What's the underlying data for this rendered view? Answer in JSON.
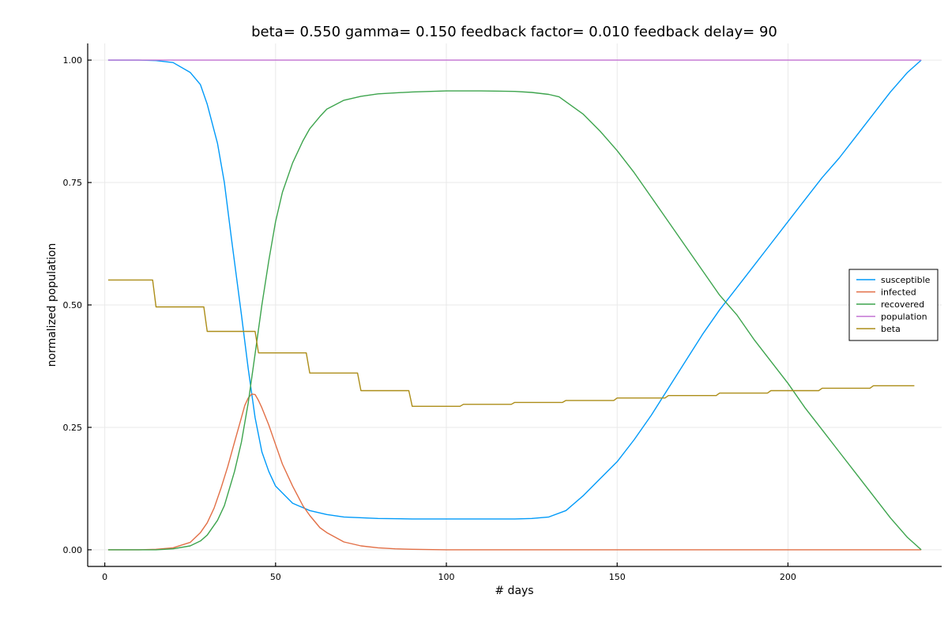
{
  "chart_data": {
    "type": "line",
    "title": "beta= 0.550 gamma= 0.150 feedback factor= 0.010 feedback delay= 90",
    "xlabel": "# days",
    "ylabel": "normalized population",
    "xlim": [
      -5,
      245
    ],
    "ylim": [
      -0.034,
      1.034
    ],
    "xticks": [
      0,
      50,
      100,
      150,
      200
    ],
    "xtick_labels": [
      "0",
      "50",
      "100",
      "150",
      "200"
    ],
    "yticks": [
      0,
      0.25,
      0.5,
      0.75,
      1.0
    ],
    "ytick_labels": [
      "0.00",
      "0.25",
      "0.50",
      "0.75",
      "1.00"
    ],
    "grid": true,
    "legend_position": "right",
    "series": [
      {
        "name": "susceptible",
        "color": "#009af9",
        "x": [
          1,
          10,
          15,
          20,
          25,
          28,
          30,
          33,
          35,
          37,
          40,
          42,
          44,
          46,
          48,
          50,
          55,
          60,
          65,
          70,
          80,
          90,
          100,
          110,
          120,
          125,
          130,
          135,
          140,
          145,
          150,
          155,
          160,
          165,
          170,
          175,
          180,
          185,
          190,
          195,
          200,
          205,
          210,
          215,
          220,
          225,
          230,
          235,
          239
        ],
        "y": [
          1.0,
          1.0,
          0.999,
          0.995,
          0.975,
          0.95,
          0.91,
          0.83,
          0.75,
          0.64,
          0.48,
          0.37,
          0.27,
          0.2,
          0.16,
          0.13,
          0.095,
          0.08,
          0.072,
          0.067,
          0.064,
          0.063,
          0.063,
          0.063,
          0.063,
          0.064,
          0.067,
          0.08,
          0.11,
          0.145,
          0.18,
          0.225,
          0.275,
          0.33,
          0.385,
          0.44,
          0.49,
          0.535,
          0.58,
          0.625,
          0.67,
          0.715,
          0.76,
          0.8,
          0.845,
          0.89,
          0.935,
          0.975,
          1.0
        ]
      },
      {
        "name": "infected",
        "color": "#e26f46",
        "x": [
          1,
          10,
          15,
          20,
          25,
          28,
          30,
          32,
          34,
          36,
          38,
          40,
          41,
          42,
          43,
          44,
          45,
          46,
          48,
          50,
          52,
          55,
          58,
          60,
          63,
          65,
          70,
          75,
          80,
          85,
          90,
          100,
          110,
          120,
          150,
          200,
          239
        ],
        "y": [
          0.0,
          0.0,
          0.001,
          0.004,
          0.015,
          0.035,
          0.055,
          0.085,
          0.125,
          0.17,
          0.22,
          0.27,
          0.295,
          0.31,
          0.318,
          0.317,
          0.305,
          0.29,
          0.255,
          0.215,
          0.175,
          0.13,
          0.09,
          0.07,
          0.045,
          0.035,
          0.016,
          0.008,
          0.004,
          0.002,
          0.001,
          0.0,
          0.0,
          0.0,
          0.0,
          0.0,
          0.0
        ]
      },
      {
        "name": "recovered",
        "color": "#3da44d",
        "x": [
          1,
          10,
          15,
          20,
          25,
          28,
          30,
          33,
          35,
          38,
          40,
          42,
          44,
          46,
          48,
          50,
          52,
          55,
          58,
          60,
          63,
          65,
          70,
          75,
          80,
          90,
          100,
          110,
          120,
          125,
          130,
          133,
          135,
          140,
          145,
          150,
          155,
          160,
          165,
          170,
          175,
          180,
          185,
          190,
          195,
          200,
          205,
          210,
          215,
          220,
          225,
          230,
          235,
          239
        ],
        "y": [
          0.0,
          0.0,
          0.0,
          0.002,
          0.008,
          0.018,
          0.03,
          0.06,
          0.09,
          0.16,
          0.22,
          0.3,
          0.4,
          0.5,
          0.59,
          0.67,
          0.73,
          0.79,
          0.835,
          0.86,
          0.885,
          0.9,
          0.918,
          0.926,
          0.931,
          0.935,
          0.937,
          0.937,
          0.936,
          0.934,
          0.93,
          0.925,
          0.915,
          0.89,
          0.855,
          0.815,
          0.77,
          0.72,
          0.67,
          0.62,
          0.57,
          0.52,
          0.48,
          0.43,
          0.385,
          0.34,
          0.29,
          0.245,
          0.2,
          0.155,
          0.11,
          0.065,
          0.025,
          0.0
        ]
      },
      {
        "name": "population",
        "color": "#c271d2",
        "x": [
          1,
          239
        ],
        "y": [
          1.0,
          1.0
        ]
      },
      {
        "name": "beta",
        "color": "#ac8d18",
        "x": [
          1,
          14,
          15,
          29,
          30,
          44,
          45,
          59,
          60,
          74,
          75,
          89,
          90,
          104,
          105,
          119,
          120,
          134,
          135,
          149,
          150,
          164,
          165,
          179,
          180,
          194,
          195,
          209,
          210,
          224,
          225,
          237
        ],
        "y": [
          0.551,
          0.551,
          0.496,
          0.496,
          0.446,
          0.446,
          0.402,
          0.402,
          0.361,
          0.361,
          0.325,
          0.325,
          0.293,
          0.293,
          0.297,
          0.297,
          0.301,
          0.301,
          0.305,
          0.305,
          0.31,
          0.31,
          0.315,
          0.315,
          0.32,
          0.32,
          0.325,
          0.325,
          0.33,
          0.33,
          0.335,
          0.335
        ]
      }
    ]
  }
}
